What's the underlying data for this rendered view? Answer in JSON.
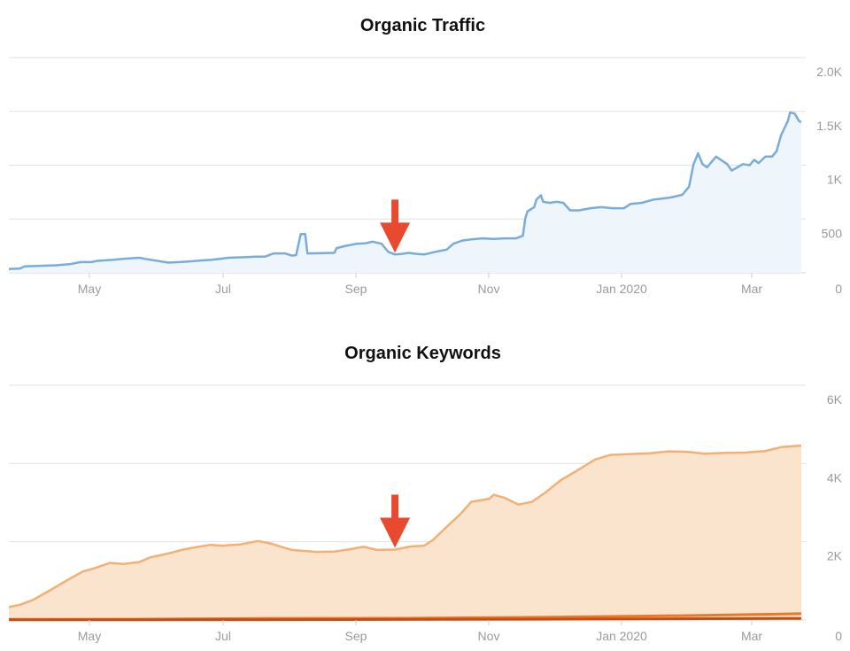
{
  "chart_data": [
    {
      "type": "area",
      "title": "Organic Traffic",
      "xlabel": "",
      "ylabel": "",
      "x_ticks": [
        "May",
        "Jul",
        "Sep",
        "Nov",
        "Jan 2020",
        "Mar"
      ],
      "y_ticks": [
        "0",
        "500",
        "1K",
        "1.5K",
        "2.0K"
      ],
      "ylim": [
        0,
        2000
      ],
      "xlim": [
        "2019-04-07",
        "2020-03-25"
      ],
      "grid": true,
      "line_color": "#7aacd9",
      "fill_color": "#eef5fb",
      "annotation": {
        "type": "arrow",
        "x": "2019-09-26",
        "color": "#e84a2f"
      },
      "series": [
        {
          "values": [
            [
              "2019-04-07",
              35
            ],
            [
              "2019-04-12",
              40
            ],
            [
              "2019-04-14",
              60
            ],
            [
              "2019-04-28",
              70
            ],
            [
              "2019-05-04",
              80
            ],
            [
              "2019-05-09",
              100
            ],
            [
              "2019-05-14",
              100
            ],
            [
              "2019-05-16",
              110
            ],
            [
              "2019-05-23",
              120
            ],
            [
              "2019-05-28",
              130
            ],
            [
              "2019-06-04",
              140
            ],
            [
              "2019-06-08",
              125
            ],
            [
              "2019-06-17",
              95
            ],
            [
              "2019-06-22",
              100
            ],
            [
              "2019-06-26",
              105
            ],
            [
              "2019-07-02",
              115
            ],
            [
              "2019-07-06",
              120
            ],
            [
              "2019-07-10",
              130
            ],
            [
              "2019-07-14",
              140
            ],
            [
              "2019-07-21",
              145
            ],
            [
              "2019-07-26",
              150
            ],
            [
              "2019-07-30",
              150
            ],
            [
              "2019-08-03",
              180
            ],
            [
              "2019-08-08",
              180
            ],
            [
              "2019-08-11",
              160
            ],
            [
              "2019-08-13",
              165
            ],
            [
              "2019-08-15",
              360
            ],
            [
              "2019-08-17",
              360
            ],
            [
              "2019-08-18",
              180
            ],
            [
              "2019-08-30",
              185
            ],
            [
              "2019-08-31",
              230
            ],
            [
              "2019-09-04",
              250
            ],
            [
              "2019-09-09",
              270
            ],
            [
              "2019-09-13",
              275
            ],
            [
              "2019-09-16",
              290
            ],
            [
              "2019-09-20",
              270
            ],
            [
              "2019-09-23",
              195
            ],
            [
              "2019-09-26",
              170
            ],
            [
              "2019-09-29",
              175
            ],
            [
              "2019-10-02",
              185
            ],
            [
              "2019-10-06",
              175
            ],
            [
              "2019-10-09",
              170
            ],
            [
              "2019-10-14",
              195
            ],
            [
              "2019-10-19",
              215
            ],
            [
              "2019-10-22",
              270
            ],
            [
              "2019-10-26",
              300
            ],
            [
              "2019-10-30",
              310
            ],
            [
              "2019-11-04",
              320
            ],
            [
              "2019-11-09",
              315
            ],
            [
              "2019-11-14",
              320
            ],
            [
              "2019-11-19",
              320
            ],
            [
              "2019-11-22",
              345
            ],
            [
              "2019-11-23",
              500
            ],
            [
              "2019-11-24",
              570
            ],
            [
              "2019-11-27",
              610
            ],
            [
              "2019-11-28",
              680
            ],
            [
              "2019-11-30",
              720
            ],
            [
              "2019-12-01",
              660
            ],
            [
              "2019-12-04",
              650
            ],
            [
              "2019-12-07",
              660
            ],
            [
              "2019-12-10",
              650
            ],
            [
              "2019-12-13",
              580
            ],
            [
              "2019-12-17",
              580
            ],
            [
              "2019-12-22",
              600
            ],
            [
              "2019-12-27",
              610
            ],
            [
              "2020-01-01",
              600
            ],
            [
              "2020-01-06",
              600
            ],
            [
              "2020-01-09",
              640
            ],
            [
              "2020-01-14",
              650
            ],
            [
              "2020-01-19",
              680
            ],
            [
              "2020-01-23",
              690
            ],
            [
              "2020-01-27",
              700
            ],
            [
              "2020-02-01",
              725
            ],
            [
              "2020-02-04",
              800
            ],
            [
              "2020-02-06",
              1010
            ],
            [
              "2020-02-08",
              1110
            ],
            [
              "2020-02-10",
              1010
            ],
            [
              "2020-02-12",
              980
            ],
            [
              "2020-02-16",
              1080
            ],
            [
              "2020-02-21",
              1010
            ],
            [
              "2020-02-23",
              950
            ],
            [
              "2020-02-28",
              1010
            ],
            [
              "2020-03-02",
              1000
            ],
            [
              "2020-03-04",
              1050
            ],
            [
              "2020-03-06",
              1020
            ],
            [
              "2020-03-09",
              1080
            ],
            [
              "2020-03-12",
              1080
            ],
            [
              "2020-03-14",
              1130
            ],
            [
              "2020-03-16",
              1280
            ],
            [
              "2020-03-19",
              1410
            ],
            [
              "2020-03-20",
              1490
            ],
            [
              "2020-03-22",
              1480
            ],
            [
              "2020-03-24",
              1410
            ],
            [
              "2020-03-25",
              1400
            ]
          ]
        }
      ]
    },
    {
      "type": "area",
      "title": "Organic Keywords",
      "xlabel": "",
      "ylabel": "",
      "x_ticks": [
        "May",
        "Jul",
        "Sep",
        "Nov",
        "Jan 2020",
        "Mar"
      ],
      "y_ticks": [
        "0",
        "2K",
        "4K",
        "6K"
      ],
      "ylim": [
        0,
        6000
      ],
      "xlim": [
        "2019-04-07",
        "2020-03-25"
      ],
      "grid": true,
      "line_color": "#f2b074",
      "fill_color": "#fae4cd",
      "annotation": {
        "type": "arrow",
        "x": "2019-09-26",
        "color": "#e84a2f"
      },
      "series": [
        {
          "color": "#f2b074",
          "values": [
            [
              "2019-04-07",
              330
            ],
            [
              "2019-04-12",
              390
            ],
            [
              "2019-04-18",
              520
            ],
            [
              "2019-04-26",
              780
            ],
            [
              "2019-05-04",
              1050
            ],
            [
              "2019-05-10",
              1240
            ],
            [
              "2019-05-15",
              1320
            ],
            [
              "2019-05-22",
              1460
            ],
            [
              "2019-05-28",
              1430
            ],
            [
              "2019-06-04",
              1480
            ],
            [
              "2019-06-09",
              1600
            ],
            [
              "2019-06-17",
              1700
            ],
            [
              "2019-06-23",
              1790
            ],
            [
              "2019-06-29",
              1860
            ],
            [
              "2019-07-06",
              1920
            ],
            [
              "2019-07-11",
              1900
            ],
            [
              "2019-07-19",
              1930
            ],
            [
              "2019-07-27",
              2020
            ],
            [
              "2019-08-02",
              1950
            ],
            [
              "2019-08-11",
              1790
            ],
            [
              "2019-08-22",
              1740
            ],
            [
              "2019-08-30",
              1750
            ],
            [
              "2019-09-06",
              1810
            ],
            [
              "2019-09-12",
              1870
            ],
            [
              "2019-09-18",
              1790
            ],
            [
              "2019-09-26",
              1800
            ],
            [
              "2019-10-03",
              1880
            ],
            [
              "2019-10-09",
              1900
            ],
            [
              "2019-10-13",
              2050
            ],
            [
              "2019-10-19",
              2380
            ],
            [
              "2019-10-25",
              2700
            ],
            [
              "2019-10-30",
              3020
            ],
            [
              "2019-11-03",
              3060
            ],
            [
              "2019-11-07",
              3100
            ],
            [
              "2019-11-09",
              3200
            ],
            [
              "2019-11-14",
              3120
            ],
            [
              "2019-11-20",
              2950
            ],
            [
              "2019-11-26",
              3020
            ],
            [
              "2019-12-02",
              3260
            ],
            [
              "2019-12-09",
              3580
            ],
            [
              "2019-12-17",
              3850
            ],
            [
              "2019-12-24",
              4100
            ],
            [
              "2019-12-31",
              4220
            ],
            [
              "2020-01-08",
              4240
            ],
            [
              "2020-01-17",
              4260
            ],
            [
              "2020-01-26",
              4310
            ],
            [
              "2020-02-03",
              4300
            ],
            [
              "2020-02-11",
              4250
            ],
            [
              "2020-02-19",
              4270
            ],
            [
              "2020-02-29",
              4280
            ],
            [
              "2020-03-09",
              4320
            ],
            [
              "2020-03-16",
              4420
            ],
            [
              "2020-03-25",
              4460
            ]
          ]
        },
        {
          "color": "#e8792a",
          "values": [
            [
              "2019-04-07",
              15
            ],
            [
              "2019-06-01",
              20
            ],
            [
              "2019-08-01",
              40
            ],
            [
              "2019-10-01",
              45
            ],
            [
              "2019-12-01",
              70
            ],
            [
              "2020-02-01",
              110
            ],
            [
              "2020-03-25",
              160
            ]
          ]
        },
        {
          "color": "#c94d12",
          "values": [
            [
              "2019-04-07",
              5
            ],
            [
              "2019-08-01",
              10
            ],
            [
              "2019-12-01",
              20
            ],
            [
              "2020-03-25",
              40
            ]
          ]
        }
      ]
    }
  ]
}
